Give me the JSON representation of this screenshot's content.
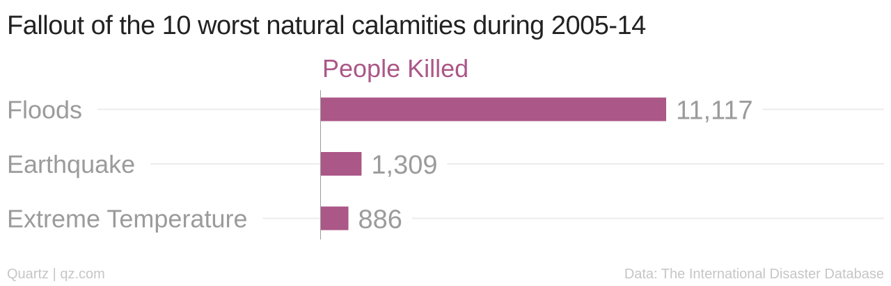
{
  "title": "Fallout of the 10 worst natural calamities during 2005-14",
  "footer": {
    "source_left": "Quartz | qz.com",
    "source_right": "Data: The International Disaster Database"
  },
  "colors": {
    "bar": "#ab5787",
    "gridline": "#ebebeb",
    "axis": "#9a9a9a",
    "label": "#9b9b9b"
  },
  "chart_data": {
    "type": "bar",
    "orientation": "horizontal",
    "title": "Fallout of the 10 worst natural calamities during 2005-14",
    "series": [
      {
        "name": "People Killed",
        "values": [
          11117,
          1309,
          886
        ]
      }
    ],
    "categories": [
      "Floods",
      "Earthquake",
      "Extreme Temperature"
    ],
    "value_labels": [
      "11,117",
      "1,309",
      "886"
    ],
    "xlim": [
      0,
      11117
    ],
    "grid": true
  }
}
